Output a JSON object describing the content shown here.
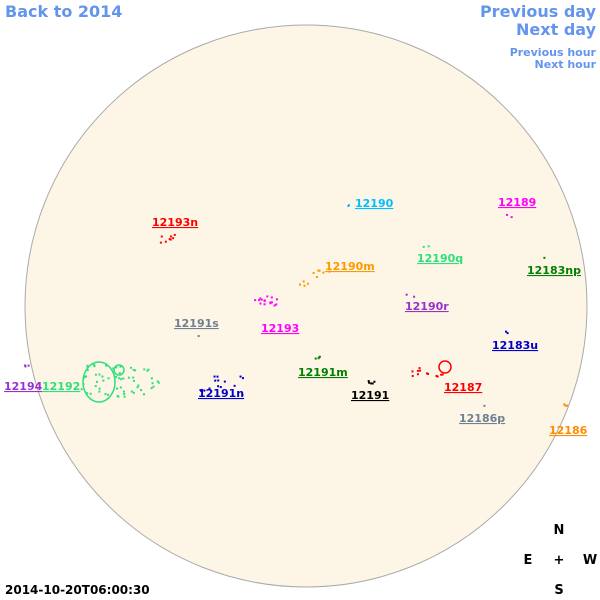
{
  "nav": {
    "back": "Back to 2014",
    "previous_day": "Previous day",
    "next_day": "Next day",
    "previous_hour": "Previous hour",
    "next_hour": "Next hour"
  },
  "regions": [
    {
      "label": "12193n",
      "color": "#ff0000"
    },
    {
      "label": "12190",
      "color": "#00bfff"
    },
    {
      "label": "12189",
      "color": "#ff00ff"
    },
    {
      "label": "12190q",
      "color": "#2ee07a"
    },
    {
      "label": "12190m",
      "color": "#ff9900"
    },
    {
      "label": "12183np",
      "color": "#008000"
    },
    {
      "label": "12190r",
      "color": "#9932cc"
    },
    {
      "label": "12191s",
      "color": "#708090"
    },
    {
      "label": "12193",
      "color": "#ff00ff"
    },
    {
      "label": "12183u",
      "color": "#0000cd"
    },
    {
      "label": "12191m",
      "color": "#008000"
    },
    {
      "label": "12194",
      "color": "#9932cc"
    },
    {
      "label": "12192",
      "color": "#2ee07a"
    },
    {
      "label": "12191n",
      "color": "#0000cd"
    },
    {
      "label": "12191",
      "color": "#000000"
    },
    {
      "label": "12187",
      "color": "#ff0000"
    },
    {
      "label": "12186p",
      "color": "#708090"
    },
    {
      "label": "12186",
      "color": "#ff8c00"
    }
  ],
  "compass": {
    "n": "N",
    "e": "E",
    "center": "+",
    "w": "W",
    "s": "S"
  },
  "timestamp": "2014-10-20T06:00:30"
}
